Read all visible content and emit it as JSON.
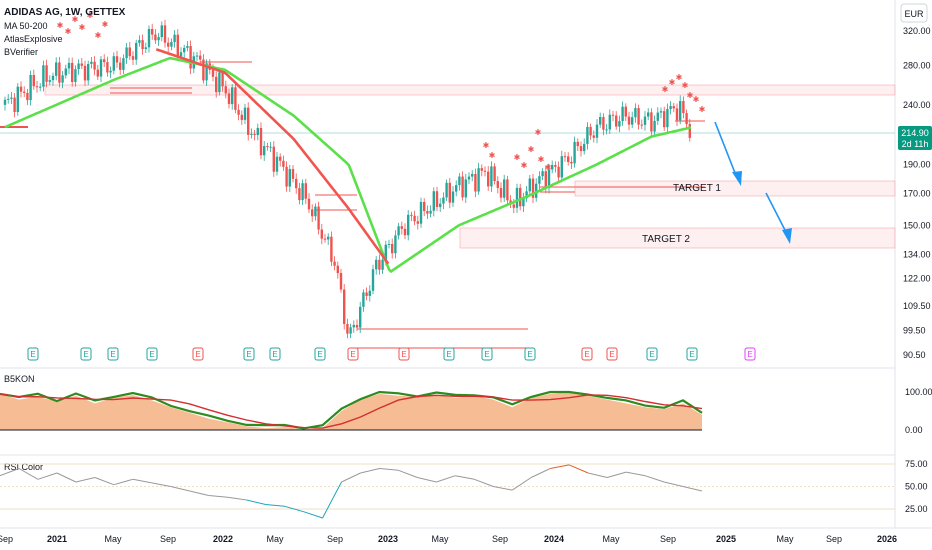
{
  "header": {
    "symbol_line": "ADIDAS AG, 1W, GETTEX",
    "indicators": [
      "MA 50-200",
      "AtlasExplosive",
      "BVerifier"
    ]
  },
  "currency": "EUR",
  "price_badge": {
    "price": "214.90",
    "countdown": "2d 11h"
  },
  "colors": {
    "up": "#26a69a",
    "down": "#ef5350",
    "ma_fast": "#5be04a",
    "ma_slow": "#f0554f",
    "zone": "rgba(242,54,69,0.10)",
    "zone_line": "#f5a9b0",
    "badge": "#089981",
    "arrow": "#2196f3",
    "osc_fill": "#f4b183",
    "osc_green": "#2e8b1f",
    "rsi_line": "#999999",
    "rsi_low": "#20a4b8",
    "rsi_high": "#e0602a"
  },
  "annotations": {
    "target1": "TARGET 1",
    "target2": "TARGET 2"
  },
  "chart_data": [
    {
      "type": "candlestick",
      "title": "ADIDAS AG, 1W, GETTEX",
      "xlabel": "",
      "ylabel": "",
      "x_ticks": [
        "Sep",
        "2021",
        "May",
        "Sep",
        "2022",
        "May",
        "Sep",
        "2023",
        "May",
        "Sep",
        "2024",
        "May",
        "Sep",
        "2025",
        "May",
        "Sep",
        "2026"
      ],
      "y_ticks": [
        90.5,
        99.5,
        109.5,
        122.0,
        134.0,
        150.0,
        170.0,
        190.0,
        215.0,
        240.0,
        280.0,
        320.0
      ],
      "scale": "log",
      "price_path": [
        [
          "2020-09",
          240
        ],
        [
          "2020-12",
          268
        ],
        [
          "2021-02",
          275
        ],
        [
          "2021-05",
          280
        ],
        [
          "2021-08",
          318
        ],
        [
          "2021-11",
          285
        ],
        [
          "2022-01",
          255
        ],
        [
          "2022-03",
          215
        ],
        [
          "2022-05",
          190
        ],
        [
          "2022-07",
          165
        ],
        [
          "2022-09",
          130
        ],
        [
          "2022-10",
          96
        ],
        [
          "2022-12",
          128
        ],
        [
          "2023-02",
          150
        ],
        [
          "2023-04",
          162
        ],
        [
          "2023-06",
          175
        ],
        [
          "2023-08",
          185
        ],
        [
          "2023-10",
          163
        ],
        [
          "2023-12",
          180
        ],
        [
          "2024-02",
          195
        ],
        [
          "2024-04",
          220
        ],
        [
          "2024-06",
          230
        ],
        [
          "2024-08",
          225
        ],
        [
          "2024-10",
          238
        ],
        [
          "2024-11",
          214.9
        ]
      ],
      "moving_averages": [
        {
          "name": "MA 50",
          "color": "#5be04a",
          "values": [
            [
              "2020-09",
              220
            ],
            [
              "2021-05",
              265
            ],
            [
              "2021-09",
              288
            ],
            [
              "2022-01",
              275
            ],
            [
              "2022-06",
              230
            ],
            [
              "2022-10",
              190
            ],
            [
              "2023-01",
              125
            ],
            [
              "2023-06",
              150
            ],
            [
              "2023-11",
              168
            ],
            [
              "2024-04",
              190
            ],
            [
              "2024-08",
              212
            ],
            [
              "2024-11",
              220
            ]
          ]
        },
        {
          "name": "MA 200",
          "color": "#f0554f",
          "values": [
            [
              "2021-08",
              298
            ],
            [
              "2022-01",
              272
            ],
            [
              "2022-06",
              210
            ],
            [
              "2022-10",
              160
            ],
            [
              "2023-01",
              128
            ]
          ]
        }
      ],
      "zones": [
        {
          "label": "",
          "low": 250,
          "high": 262
        },
        {
          "label": "TARGET 1",
          "low": 168,
          "high": 180
        },
        {
          "label": "TARGET 2",
          "low": 137,
          "high": 148
        }
      ],
      "last_price": 214.9
    },
    {
      "type": "area",
      "title": "B5KON",
      "y_ticks": [
        0.0,
        100.0
      ],
      "values": [
        95,
        80,
        88,
        75,
        90,
        70,
        85,
        92,
        78,
        60,
        45,
        30,
        20,
        10,
        5,
        8,
        2,
        5,
        50,
        80,
        95,
        90,
        88,
        92,
        85,
        90,
        80,
        60,
        85,
        95,
        100,
        90,
        80,
        70,
        60,
        55,
        70,
        40
      ]
    },
    {
      "type": "line",
      "title": "RSI Color",
      "y_ticks": [
        25.0,
        50.0,
        75.0
      ],
      "values": [
        62,
        70,
        58,
        65,
        55,
        60,
        52,
        58,
        54,
        50,
        45,
        40,
        38,
        35,
        30,
        28,
        22,
        15,
        55,
        65,
        70,
        68,
        60,
        55,
        62,
        58,
        50,
        46,
        60,
        70,
        74,
        65,
        60,
        66,
        62,
        55,
        50,
        45
      ]
    }
  ]
}
